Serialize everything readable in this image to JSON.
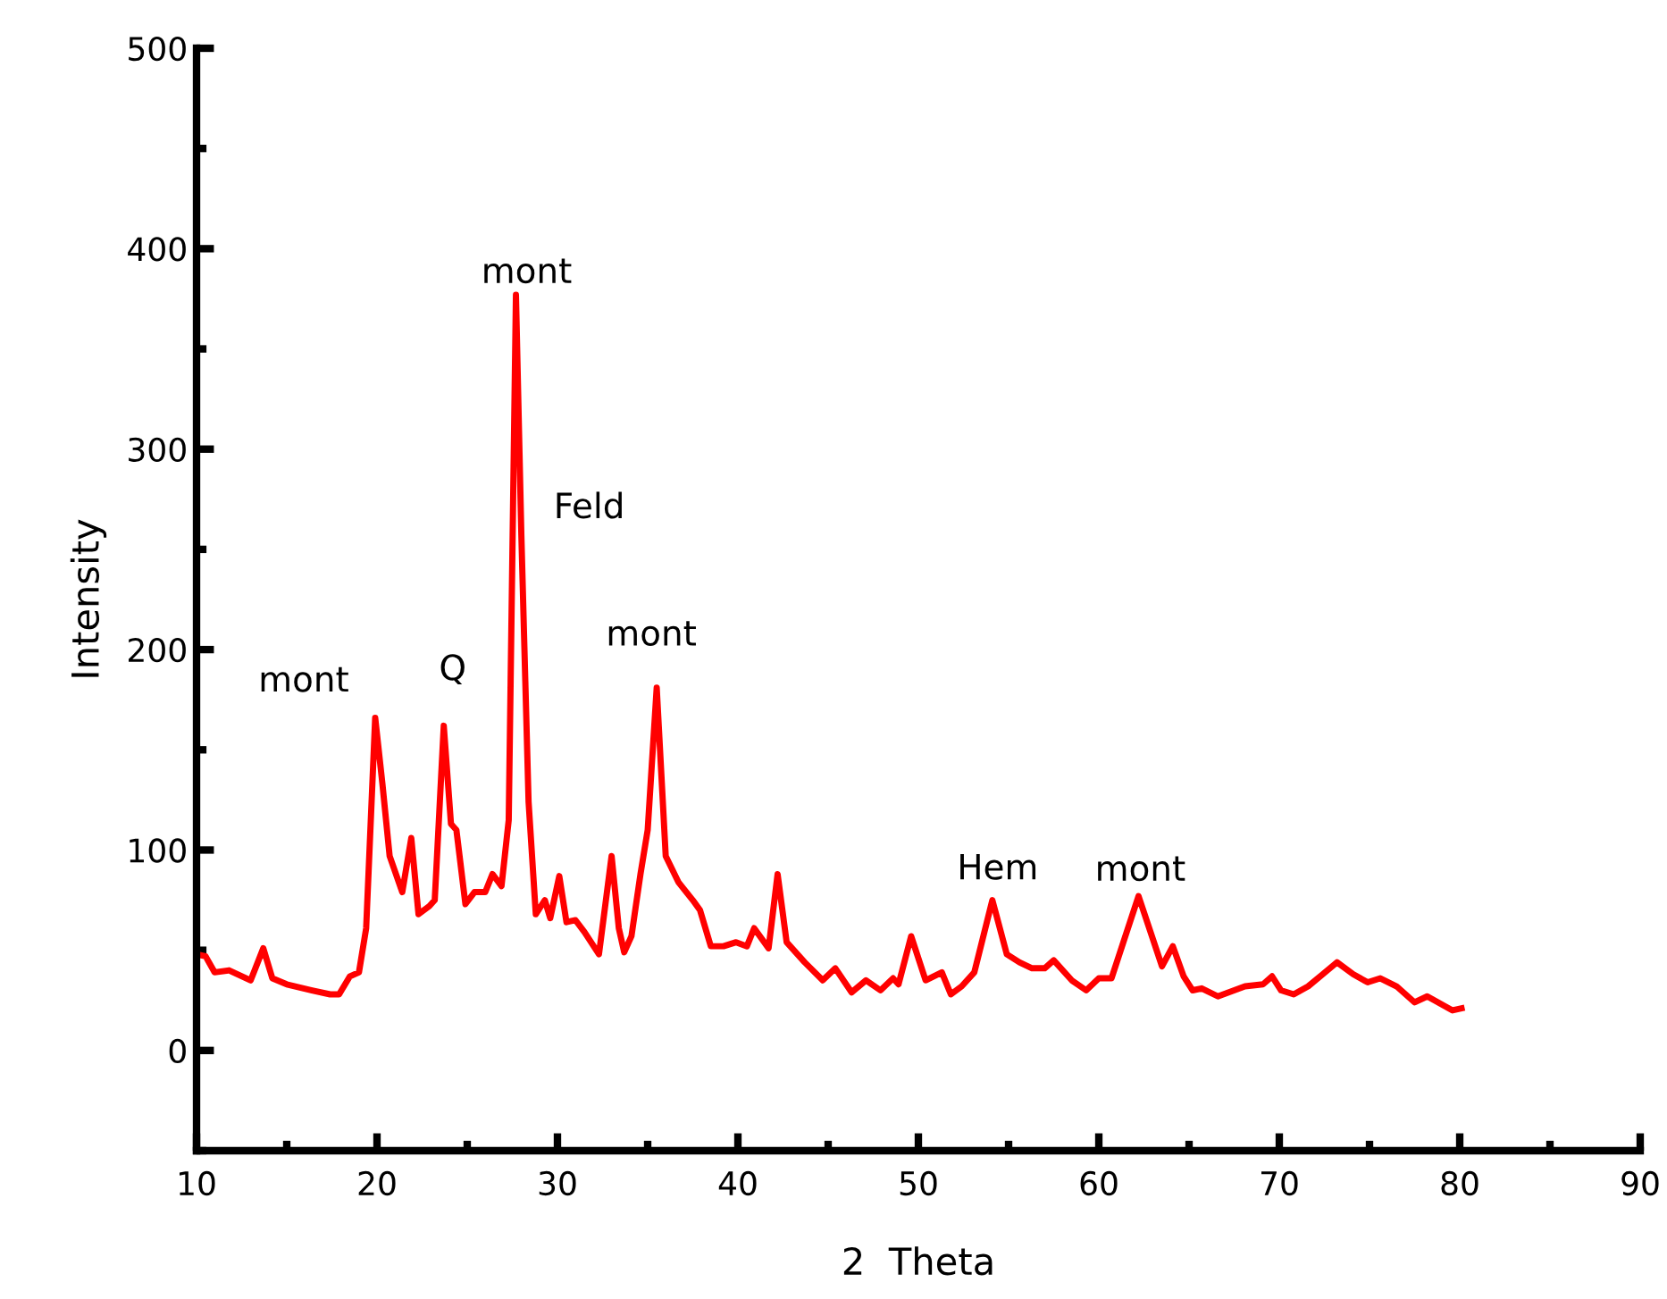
{
  "chart_data": {
    "type": "line",
    "xlabel": "2  Theta",
    "ylabel": "Intensity",
    "series": [
      {
        "color": "#ff0000",
        "x": [
          10,
          10.5,
          11,
          11.8,
          13,
          13.7,
          14.2,
          15,
          16.4,
          17.4,
          17.9,
          18.5,
          19,
          19.4,
          19.9,
          20.3,
          20.7,
          21.4,
          21.9,
          22.3,
          22.9,
          23.2,
          23.7,
          24.1,
          24.4,
          24.9,
          25.4,
          26,
          26.4,
          26.9,
          27.3,
          27.7,
          28,
          28.4,
          28.8,
          29.3,
          29.6,
          30.1,
          30.5,
          31,
          31.5,
          32.3,
          33,
          33.4,
          33.7,
          34.1,
          34.6,
          35,
          35.5,
          36,
          36.7,
          37.5,
          37.9,
          38.5,
          39.2,
          39.9,
          40.5,
          40.9,
          41.7,
          42.2,
          42.7,
          43.7,
          44.7,
          45.4,
          46.3,
          47.1,
          47.9,
          48.6,
          48.9,
          49.6,
          50.4,
          51.3,
          51.8,
          52.4,
          53.1,
          54.1,
          54.9,
          55.6,
          56.3,
          57,
          57.5,
          58.5,
          59.3,
          60,
          60.7,
          62.2,
          63.5,
          64.1,
          64.7,
          65.2,
          65.7,
          66.6,
          67.2,
          68.1,
          69.1,
          69.6,
          70.1,
          70.8,
          71.6,
          72.4,
          73.2,
          74.1,
          74.9,
          75.6,
          76.5,
          77.5,
          78.2,
          79,
          79.6,
          80.1
        ],
        "values": [
          48,
          47,
          39,
          40,
          35,
          51,
          36,
          33,
          30,
          28,
          28,
          37,
          39,
          61,
          166,
          133,
          97,
          79,
          106,
          68,
          72,
          75,
          162,
          113,
          110,
          73,
          79,
          79,
          88,
          82,
          115,
          377,
          257,
          124,
          68,
          75,
          66,
          87,
          64,
          65,
          59,
          48,
          97,
          61,
          49,
          57,
          88,
          110,
          181,
          97,
          84,
          75,
          70,
          52,
          52,
          54,
          52,
          61,
          51,
          88,
          54,
          44,
          35,
          41,
          29,
          35,
          30,
          36,
          33,
          57,
          35,
          39,
          28,
          32,
          39,
          75,
          48,
          44,
          41,
          41,
          45,
          35,
          30,
          36,
          36,
          77,
          42,
          52,
          37,
          30,
          31,
          27,
          29,
          32,
          33,
          37,
          30,
          28,
          32,
          38,
          44,
          38,
          34,
          36,
          32,
          24,
          27,
          23,
          20,
          21
        ]
      }
    ],
    "xlim": [
      10,
      90
    ],
    "xticks": [
      10,
      {
        "value": 15,
        "label": null
      },
      20,
      {
        "value": 25,
        "label": null
      },
      30,
      {
        "value": 35,
        "label": null
      },
      40,
      {
        "value": 45,
        "label": null
      },
      50,
      {
        "value": 55,
        "label": null
      },
      60,
      {
        "value": 65,
        "label": null
      },
      70,
      {
        "value": 75,
        "label": null
      },
      80,
      {
        "value": 85,
        "label": null
      },
      90
    ],
    "ylim": [
      -50,
      500
    ],
    "yticks": [
      {
        "value": -50,
        "label": null
      },
      0,
      {
        "value": 50,
        "label": null
      },
      100,
      {
        "value": 150,
        "label": null
      },
      200,
      {
        "value": 250,
        "label": null
      },
      300,
      {
        "value": 350,
        "label": null
      },
      400,
      {
        "value": 450,
        "label": null
      },
      500
    ],
    "annotations": [
      {
        "text": "mont",
        "x": 19.9,
        "y": 166
      },
      {
        "text": "Q",
        "x": 23.7,
        "y": 162
      },
      {
        "text": "mont",
        "x": 27.7,
        "y": 377
      },
      {
        "text": "Feld",
        "x": 28,
        "y": 257
      },
      {
        "text": "mont",
        "x": 35.5,
        "y": 181
      },
      {
        "text": "Hem",
        "x": 54.1,
        "y": 75
      },
      {
        "text": "mont",
        "x": 62.2,
        "y": 77
      }
    ],
    "grid": false,
    "legend": false,
    "marker": "none",
    "line_style": "solid"
  }
}
